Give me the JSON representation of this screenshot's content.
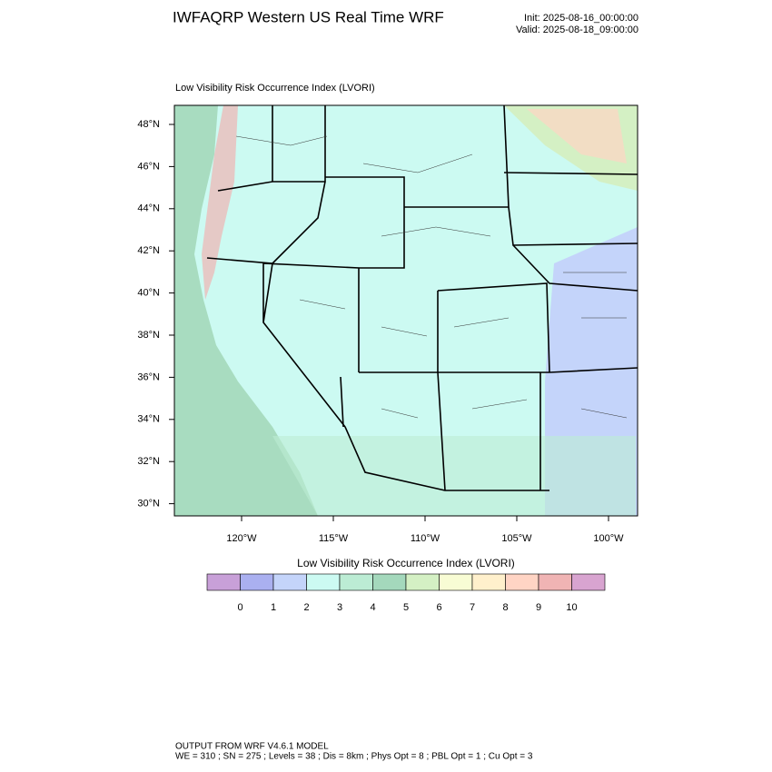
{
  "header": {
    "title": "IWFAQRP Western US Real Time WRF",
    "init": "Init: 2025-08-16_00:00:00",
    "valid": "Valid: 2025-08-18_09:00:00"
  },
  "map": {
    "title": "Low Visibility Risk Occurrence Index   (LVORI)",
    "lat_labels": [
      "48°N",
      "46°N",
      "44°N",
      "42°N",
      "40°N",
      "38°N",
      "36°N",
      "34°N",
      "32°N",
      "30°N"
    ],
    "lon_labels": [
      "120°W",
      "115°W",
      "110°W",
      "105°W",
      "100°W"
    ]
  },
  "colorbar": {
    "title": "Low Visibility Risk Occurrence Index  (LVORI)",
    "colors": [
      "#c8a0d8",
      "#aab0f0",
      "#c4d4fa",
      "#ccfaf2",
      "#bcecd4",
      "#a4d8bc",
      "#d4f0c4",
      "#f8fcd4",
      "#fff0cc",
      "#ffd4c4",
      "#f0b4b4",
      "#d8a4d0"
    ],
    "levels": [
      0,
      1,
      2,
      3,
      4,
      5,
      6,
      7,
      8,
      9,
      10
    ]
  },
  "footer": {
    "line1": "OUTPUT FROM WRF V4.6.1 MODEL",
    "line2": "WE = 310 ; SN = 275 ; Levels = 38 ; Dis = 8km ; Phys Opt = 8 ; PBL Opt = 1 ; Cu Opt = 3"
  }
}
